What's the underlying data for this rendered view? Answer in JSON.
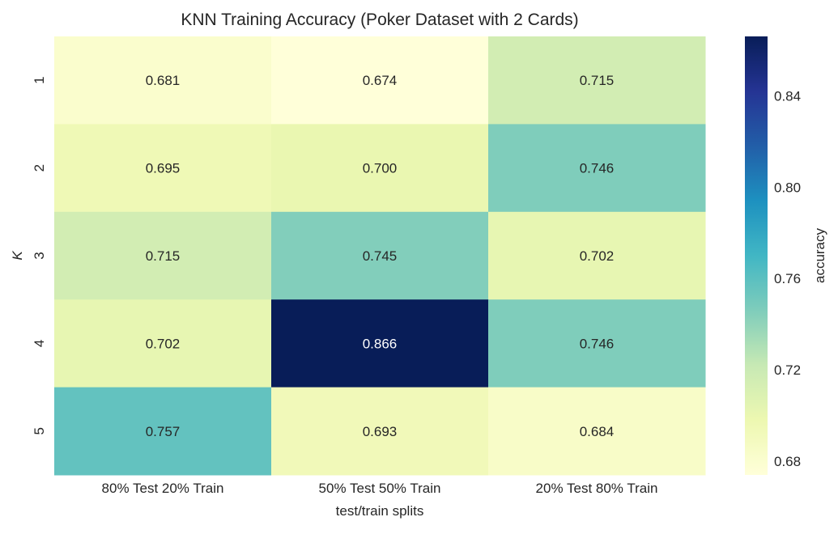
{
  "chart_data": {
    "type": "heatmap",
    "title": "KNN Training Accuracy (Poker Dataset with 2 Cards)",
    "xlabel": "test/train splits",
    "ylabel": "K",
    "colorbar_label": "accuracy",
    "x_categories": [
      "80% Test 20% Train",
      "50% Test 50% Train",
      "20% Test 80% Train"
    ],
    "y_categories": [
      "1",
      "2",
      "3",
      "4",
      "5"
    ],
    "values": [
      [
        0.681,
        0.674,
        0.715
      ],
      [
        0.695,
        0.7,
        0.746
      ],
      [
        0.715,
        0.745,
        0.702
      ],
      [
        0.702,
        0.866,
        0.746
      ],
      [
        0.757,
        0.693,
        0.684
      ]
    ],
    "value_labels": [
      [
        "0.681",
        "0.674",
        "0.715"
      ],
      [
        "0.695",
        "0.700",
        "0.746"
      ],
      [
        "0.715",
        "0.745",
        "0.702"
      ],
      [
        "0.702",
        "0.866",
        "0.746"
      ],
      [
        "0.757",
        "0.693",
        "0.684"
      ]
    ],
    "colorbar_ticks": [
      "0.68",
      "0.72",
      "0.76",
      "0.80",
      "0.84"
    ],
    "vmin": 0.674,
    "vmax": 0.866,
    "colormap": "YlGnBu",
    "colormap_stops": [
      "#ffffd9",
      "#edf8b1",
      "#c7e9b4",
      "#7fcdbb",
      "#41b6c4",
      "#1d91c0",
      "#225ea8",
      "#253494",
      "#081d58"
    ],
    "text_color_dark": "#262626",
    "text_color_light": "#ffffff",
    "grid": false
  }
}
